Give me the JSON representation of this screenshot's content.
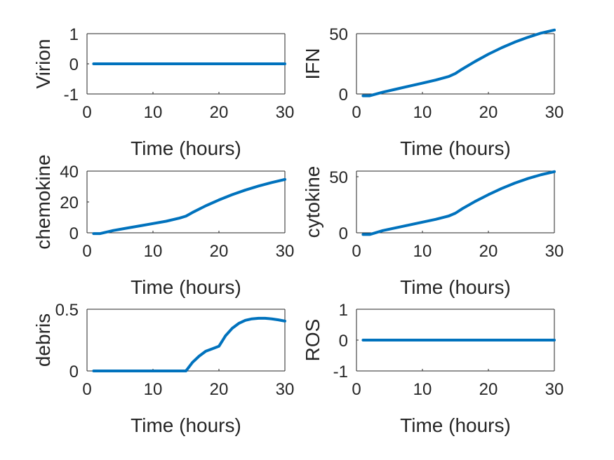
{
  "figure": {
    "line_color": "#0072BD",
    "axis_color": "#262626",
    "background": "#ffffff"
  },
  "chart_data": [
    {
      "type": "line",
      "xlabel": "Time (hours)",
      "ylabel": "Virion",
      "xlim": [
        0,
        30
      ],
      "ylim": [
        -1,
        1
      ],
      "xticks": [
        0,
        10,
        20,
        30
      ],
      "yticks": [
        -1,
        0,
        1
      ],
      "ytick_labels": [
        "-1",
        "0",
        "1"
      ],
      "grid": false,
      "series": [
        {
          "x": [
            1,
            30
          ],
          "y": [
            0,
            0
          ]
        }
      ]
    },
    {
      "type": "line",
      "xlabel": "Time (hours)",
      "ylabel": "IFN",
      "xlim": [
        0,
        30
      ],
      "ylim": [
        0,
        50
      ],
      "xticks": [
        0,
        10,
        20,
        30
      ],
      "yticks": [
        0,
        50
      ],
      "ytick_labels": [
        "0",
        "50"
      ],
      "grid": false,
      "series": [
        {
          "x": [
            1,
            2,
            4,
            6,
            8,
            10,
            12,
            14,
            15,
            16,
            18,
            20,
            22,
            24,
            26,
            28,
            30
          ],
          "y": [
            -1.5,
            -1.5,
            1.5,
            4,
            6.5,
            9,
            11.5,
            14.5,
            17,
            20.5,
            27,
            33,
            38.3,
            43,
            47,
            50.5,
            53
          ]
        }
      ]
    },
    {
      "type": "line",
      "xlabel": "Time (hours)",
      "ylabel": "chemokine",
      "xlim": [
        0,
        30
      ],
      "ylim": [
        0,
        40
      ],
      "xticks": [
        0,
        10,
        20,
        30
      ],
      "yticks": [
        0,
        20,
        40
      ],
      "ytick_labels": [
        "0",
        "20",
        "40"
      ],
      "grid": false,
      "series": [
        {
          "x": [
            1,
            2,
            4,
            6,
            8,
            10,
            12,
            14,
            15,
            16,
            18,
            20,
            22,
            24,
            26,
            28,
            30
          ],
          "y": [
            -0.5,
            -0.5,
            1.5,
            3,
            4.5,
            6,
            7.5,
            9.5,
            10.8,
            13.2,
            17.5,
            21.3,
            24.7,
            27.7,
            30.3,
            32.6,
            34.6
          ]
        }
      ]
    },
    {
      "type": "line",
      "xlabel": "Time (hours)",
      "ylabel": "cytokine",
      "xlim": [
        0,
        30
      ],
      "ylim": [
        0,
        55
      ],
      "xticks": [
        0,
        10,
        20,
        30
      ],
      "yticks": [
        0,
        50
      ],
      "ytick_labels": [
        "0",
        "50"
      ],
      "grid": false,
      "series": [
        {
          "x": [
            1,
            2,
            4,
            6,
            8,
            10,
            12,
            14,
            15,
            16,
            18,
            20,
            22,
            24,
            26,
            28,
            30
          ],
          "y": [
            -1.5,
            -1.5,
            2,
            4.5,
            7,
            9.5,
            12,
            15,
            17.5,
            21.3,
            28,
            34,
            39.5,
            44.3,
            48.4,
            51.8,
            54.5
          ]
        }
      ]
    },
    {
      "type": "line",
      "xlabel": "Time (hours)",
      "ylabel": "debris",
      "xlim": [
        0,
        30
      ],
      "ylim": [
        0,
        0.5
      ],
      "xticks": [
        0,
        10,
        20,
        30
      ],
      "yticks": [
        0,
        0.5
      ],
      "ytick_labels": [
        "0",
        "0.5"
      ],
      "grid": false,
      "series": [
        {
          "x": [
            1,
            15,
            16,
            17,
            18,
            19,
            20,
            21,
            22,
            23,
            24,
            25,
            26,
            27,
            28,
            29,
            30
          ],
          "y": [
            0,
            0,
            0.07,
            0.12,
            0.16,
            0.18,
            0.2,
            0.285,
            0.345,
            0.385,
            0.41,
            0.422,
            0.427,
            0.427,
            0.422,
            0.414,
            0.404
          ]
        }
      ]
    },
    {
      "type": "line",
      "xlabel": "Time (hours)",
      "ylabel": "ROS",
      "xlim": [
        0,
        30
      ],
      "ylim": [
        -1,
        1
      ],
      "xticks": [
        0,
        10,
        20,
        30
      ],
      "yticks": [
        -1,
        0,
        1
      ],
      "ytick_labels": [
        "-1",
        "0",
        "1"
      ],
      "grid": false,
      "series": [
        {
          "x": [
            1,
            30
          ],
          "y": [
            0,
            0
          ]
        }
      ]
    }
  ]
}
